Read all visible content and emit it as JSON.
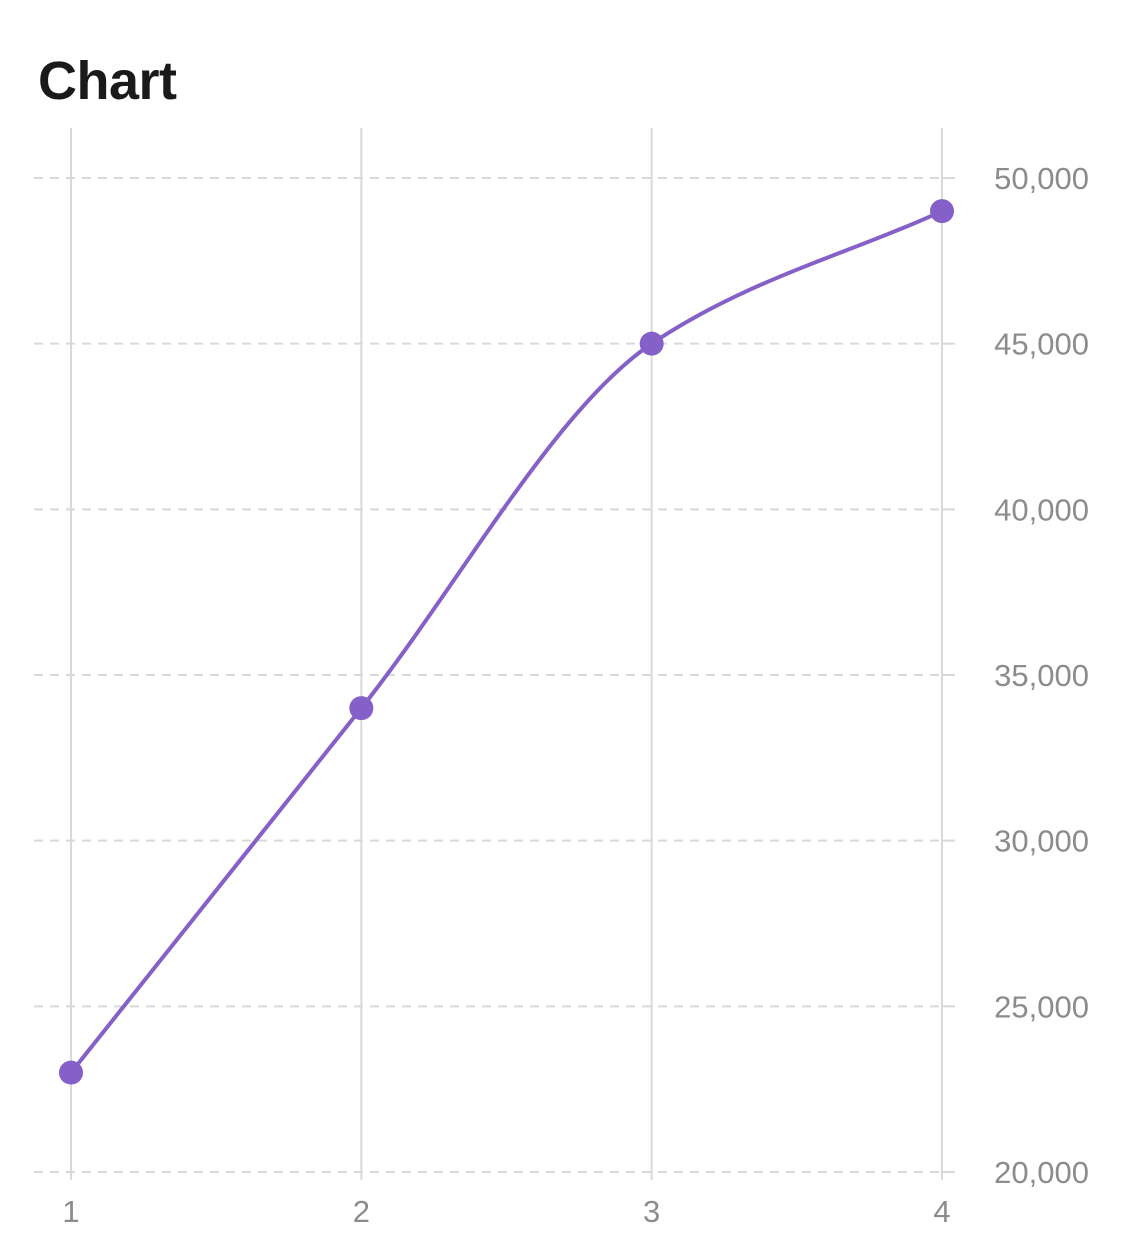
{
  "header": {
    "title": "Chart"
  },
  "chart_data": {
    "type": "line",
    "title": "Chart",
    "x": [
      1,
      2,
      3,
      4
    ],
    "x_tick_labels": [
      "1",
      "2",
      "3",
      "4"
    ],
    "series": [
      {
        "values": [
          23000,
          34000,
          45000,
          49000
        ]
      }
    ],
    "ylim": [
      20000,
      50000
    ],
    "y_ticks": [
      20000,
      25000,
      30000,
      35000,
      40000,
      45000,
      50000
    ],
    "y_tick_labels": [
      "20,000",
      "25,000",
      "30,000",
      "35,000",
      "40,000",
      "45,000",
      "50,000"
    ],
    "y_axis_position": "right",
    "grid": true,
    "line_smoothing": "monotone",
    "colors": {
      "line": "#8460C8",
      "grid_vertical": "#D9D9D9",
      "grid_horizontal": "#D9D9D9",
      "tick_text": "#8C8C8C"
    }
  }
}
